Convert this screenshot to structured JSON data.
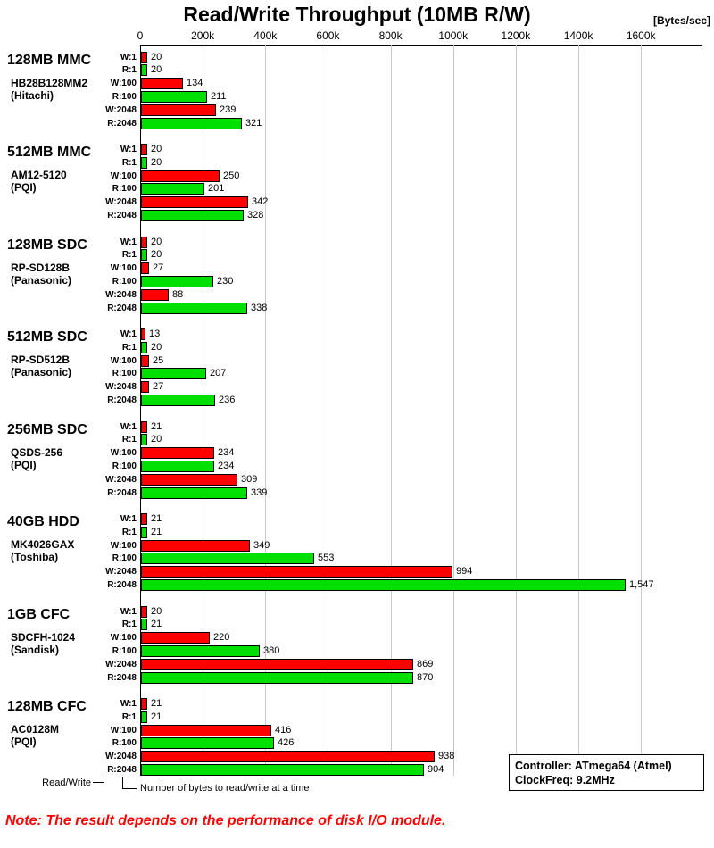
{
  "chart_data": {
    "type": "bar",
    "orientation": "horizontal",
    "title": "Read/Write Throughput (10MB R/W)",
    "unit_label": "[Bytes/sec]",
    "axis_ticks": [
      "0",
      "200k",
      "400k",
      "600k",
      "800k",
      "1000k",
      "1200k",
      "1400k",
      "1600k"
    ],
    "axis_range": [
      0,
      1600000
    ],
    "grid": true,
    "value_scale": "bar values are in kBytes/sec (plotted against k-axis)",
    "row_labels": [
      "W:1",
      "R:1",
      "W:100",
      "R:100",
      "W:2048",
      "R:2048"
    ],
    "write_color": "#ff0000",
    "read_color": "#00e000",
    "groups": [
      {
        "name": "128MB MMC",
        "model": "HB28B128MM2",
        "maker": "(Hitachi)",
        "values": [
          20,
          20,
          134,
          211,
          239,
          321
        ],
        "labels": [
          "20",
          "20",
          "134",
          "211",
          "239",
          "321"
        ]
      },
      {
        "name": "512MB MMC",
        "model": "AM12-5120",
        "maker": "(PQI)",
        "values": [
          20,
          20,
          250,
          201,
          342,
          328
        ],
        "labels": [
          "20",
          "20",
          "250",
          "201",
          "342",
          "328"
        ]
      },
      {
        "name": "128MB SDC",
        "model": "RP-SD128B",
        "maker": "(Panasonic)",
        "values": [
          20,
          20,
          27,
          230,
          88,
          338
        ],
        "labels": [
          "20",
          "20",
          "27",
          "230",
          "88",
          "338"
        ]
      },
      {
        "name": "512MB SDC",
        "model": "RP-SD512B",
        "maker": "(Panasonic)",
        "values": [
          13,
          20,
          25,
          207,
          27,
          236
        ],
        "labels": [
          "13",
          "20",
          "25",
          "207",
          "27",
          "236"
        ]
      },
      {
        "name": "256MB SDC",
        "model": "QSDS-256",
        "maker": "(PQI)",
        "values": [
          21,
          20,
          234,
          234,
          309,
          339
        ],
        "labels": [
          "21",
          "20",
          "234",
          "234",
          "309",
          "339"
        ]
      },
      {
        "name": "40GB HDD",
        "model": "MK4026GAX",
        "maker": "(Toshiba)",
        "values": [
          21,
          21,
          349,
          553,
          994,
          1547
        ],
        "labels": [
          "21",
          "21",
          "349",
          "553",
          "994",
          "1,547"
        ]
      },
      {
        "name": "1GB CFC",
        "model": "SDCFH-1024",
        "maker": "(Sandisk)",
        "values": [
          20,
          21,
          220,
          380,
          869,
          870
        ],
        "labels": [
          "20",
          "21",
          "220",
          "380",
          "869",
          "870"
        ]
      },
      {
        "name": "128MB CFC",
        "model": "AC0128M",
        "maker": "(PQI)",
        "values": [
          21,
          21,
          416,
          426,
          938,
          904
        ],
        "labels": [
          "21",
          "21",
          "416",
          "426",
          "938",
          "904"
        ]
      }
    ]
  },
  "annotations": {
    "read_write_label": "Read/Write",
    "bytes_label": "Number of bytes to read/write at a time",
    "controller_line1": "Controller: ATmega64 (Atmel)",
    "controller_line2": "ClockFreq: 9.2MHz",
    "note": "Note: The result depends on the performance of disk I/O module."
  }
}
